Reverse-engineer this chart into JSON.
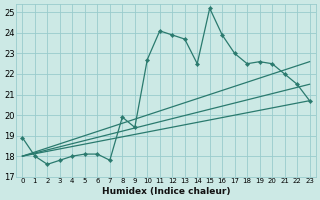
{
  "xlabel": "Humidex (Indice chaleur)",
  "bg_color": "#cce9e5",
  "grid_color": "#99cccc",
  "line_color": "#2a7a6e",
  "xlim": [
    -0.5,
    23.5
  ],
  "ylim": [
    17,
    25.4
  ],
  "yticks": [
    17,
    18,
    19,
    20,
    21,
    22,
    23,
    24,
    25
  ],
  "xticks": [
    0,
    1,
    2,
    3,
    4,
    5,
    6,
    7,
    8,
    9,
    10,
    11,
    12,
    13,
    14,
    15,
    16,
    17,
    18,
    19,
    20,
    21,
    22,
    23
  ],
  "main_line": {
    "x": [
      0,
      1,
      2,
      3,
      4,
      5,
      6,
      7,
      8,
      9,
      10,
      11,
      12,
      13,
      14,
      15,
      16,
      17,
      18,
      19,
      20,
      21,
      22,
      23
    ],
    "y": [
      18.9,
      18.0,
      17.6,
      17.8,
      18.0,
      18.1,
      18.1,
      17.8,
      19.9,
      19.4,
      22.7,
      24.1,
      23.9,
      23.7,
      22.5,
      25.2,
      23.9,
      23.0,
      22.5,
      22.6,
      22.5,
      22.0,
      21.5,
      20.7
    ]
  },
  "trend_lines": [
    {
      "x": [
        0,
        23
      ],
      "y": [
        18.0,
        22.6
      ]
    },
    {
      "x": [
        0,
        23
      ],
      "y": [
        18.0,
        21.5
      ]
    },
    {
      "x": [
        0,
        23
      ],
      "y": [
        18.0,
        20.7
      ]
    }
  ]
}
